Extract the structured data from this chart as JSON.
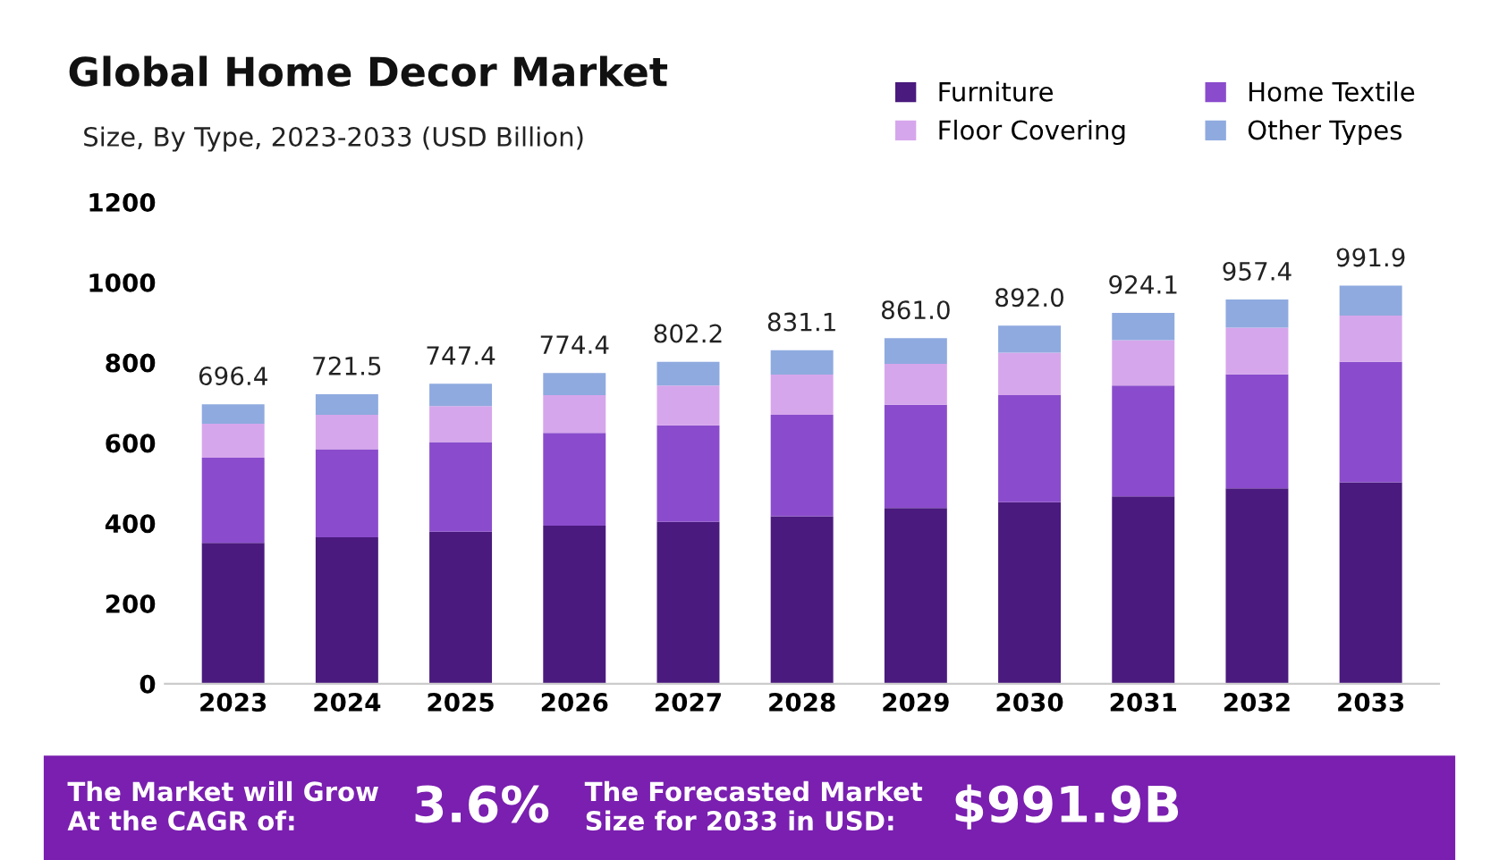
{
  "chart_data": {
    "type": "bar",
    "title": "Global Home Decor Market",
    "subtitle": "Size, By Type, 2023-2033 (USD Billion)",
    "categories": [
      "2023",
      "2024",
      "2025",
      "2026",
      "2027",
      "2028",
      "2029",
      "2030",
      "2031",
      "2032",
      "2033"
    ],
    "stacked": true,
    "series": [
      {
        "name": "Furniture",
        "color": "#4a1a7e",
        "values": [
          351,
          365,
          379,
          394,
          403,
          417,
          438,
          452,
          467,
          487,
          502
        ]
      },
      {
        "name": "Home Textile",
        "color": "#8a4ccc",
        "values": [
          212,
          219,
          223,
          231,
          241,
          253,
          257,
          267,
          276,
          284,
          300
        ]
      },
      {
        "name": "Floor Covering",
        "color": "#d6a6ec",
        "values": [
          85,
          86,
          90,
          94,
          99,
          100,
          102,
          106,
          113,
          116,
          115
        ]
      },
      {
        "name": "Other Types",
        "color": "#8faadf",
        "values": [
          48.4,
          51.5,
          55.4,
          55.4,
          59.2,
          61.1,
          64.0,
          67.0,
          68.1,
          70.4,
          74.9
        ]
      }
    ],
    "totals": [
      "696.4",
      "721.5",
      "747.4",
      "774.4",
      "802.2",
      "831.1",
      "861.0",
      "892.0",
      "924.1",
      "957.4",
      "991.9"
    ],
    "ylim": [
      0,
      1200
    ],
    "yticks": [
      0,
      200,
      400,
      600,
      800,
      1000,
      1200
    ],
    "legend": "top right",
    "grid": false,
    "annotations": [
      "The Market will Grow\nAt the CAGR of:",
      "3.6%",
      "The Forecasted Market\nSize for 2033 in USD:",
      "$991.9B"
    ]
  }
}
